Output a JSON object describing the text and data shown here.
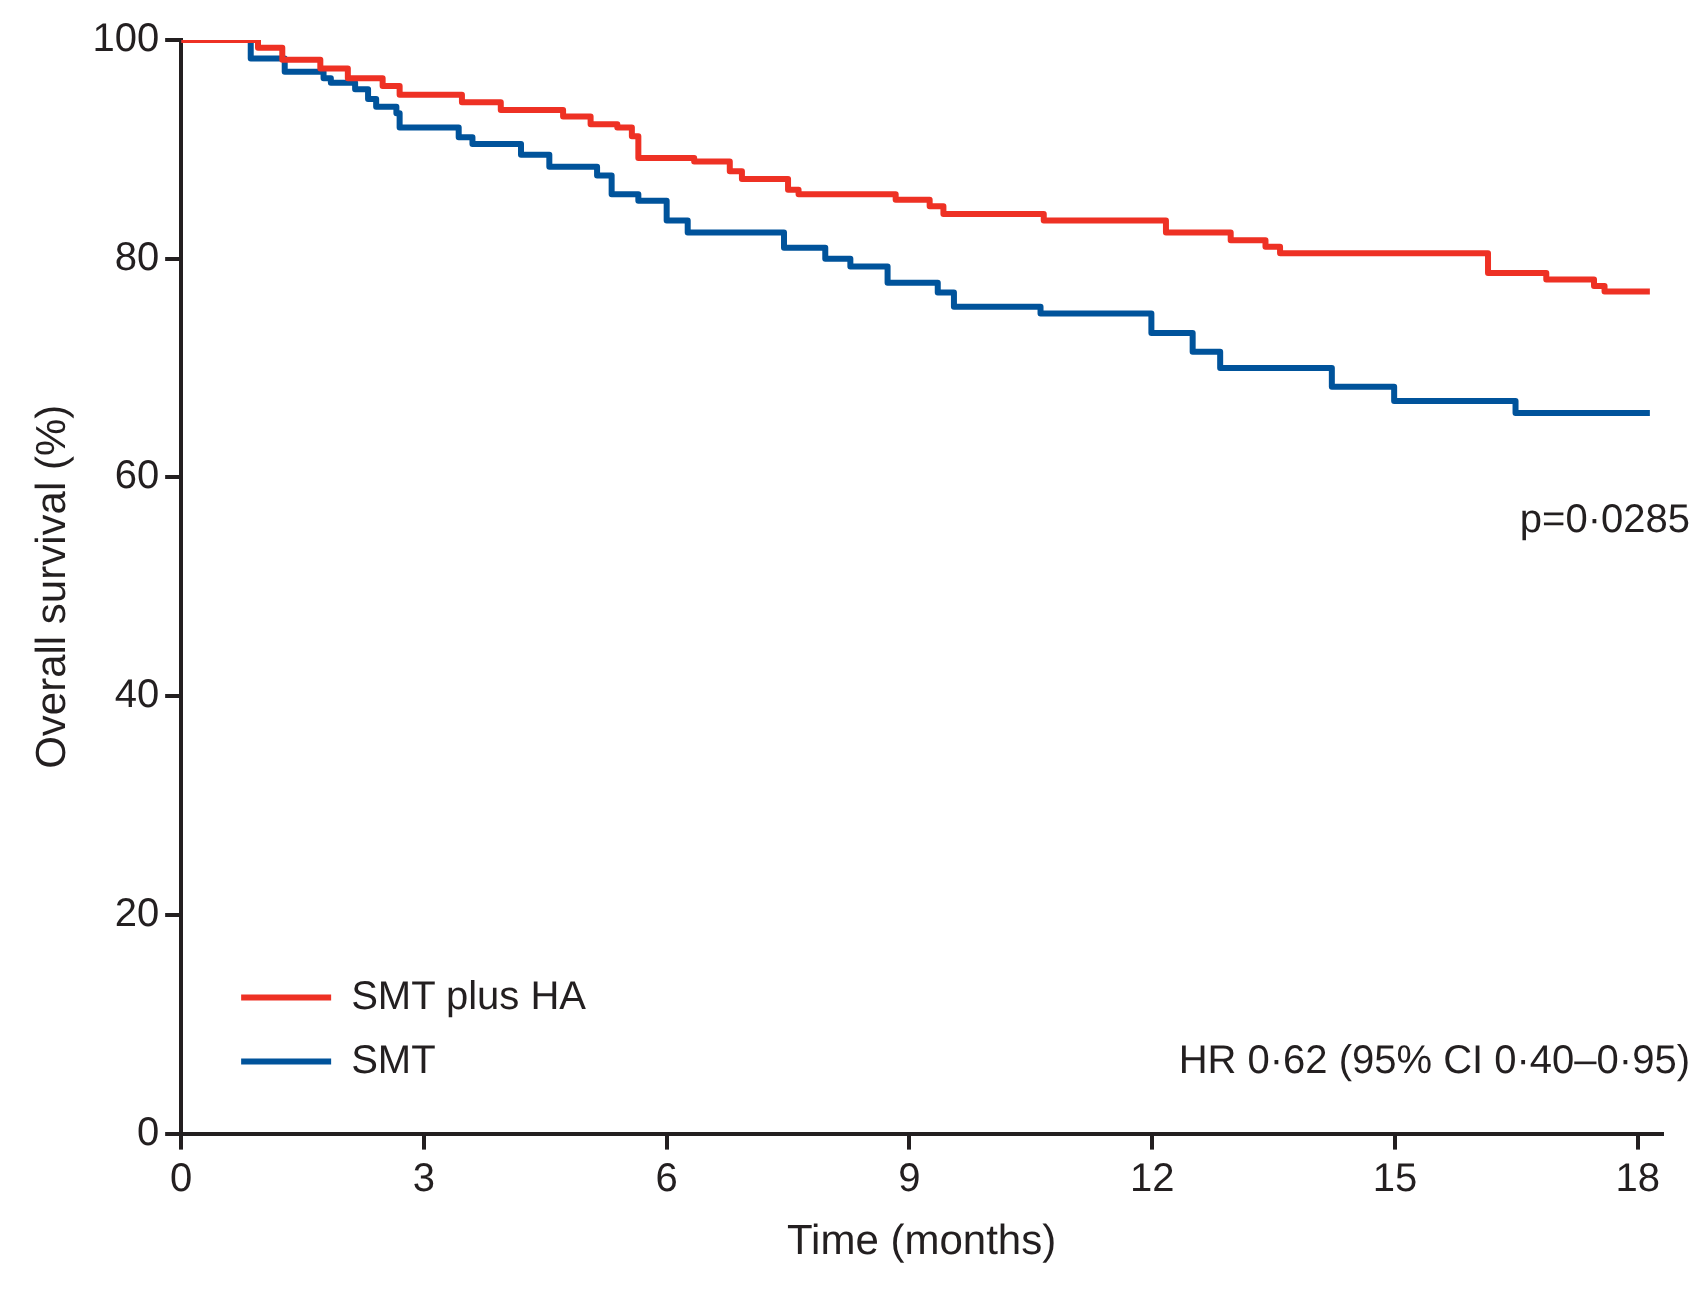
{
  "chart_data": {
    "type": "step",
    "xlabel": "Time (months)",
    "ylabel": "Overall survival (%)",
    "xlim": [
      0,
      18.3
    ],
    "xticks": [
      0,
      3,
      6,
      9,
      12,
      15,
      18
    ],
    "ylim": [
      0,
      100
    ],
    "yticks": [
      0,
      20,
      40,
      60,
      80,
      100
    ],
    "grid": false,
    "legend": "bottom left",
    "annotations": [
      "p=0·0285",
      "HR 0·62 (95% CI 0·40–0·95)"
    ],
    "series": [
      {
        "name": "SMT plus HA",
        "color": "#ee3124",
        "x": [
          0,
          0.95,
          1.25,
          1.72,
          2.06,
          2.49,
          2.7,
          3.47,
          3.95,
          4.72,
          5.06,
          5.39,
          5.57,
          5.65,
          6.34,
          6.78,
          6.93,
          7.5,
          7.63,
          8.83,
          9.25,
          9.42,
          10.66,
          12.17,
          12.97,
          13.4,
          13.58,
          16.15,
          16.87,
          17.46,
          17.59,
          18.15
        ],
        "values": [
          100,
          99.3,
          98.2,
          97.4,
          96.5,
          95.8,
          95,
          94.3,
          93.6,
          93,
          92.3,
          92,
          91.2,
          89.2,
          88.9,
          88,
          87.3,
          86.3,
          85.9,
          85.4,
          84.8,
          84.1,
          83.5,
          82.4,
          81.7,
          81.1,
          80.5,
          78.7,
          78.1,
          77.5,
          77,
          77
        ]
      },
      {
        "name": "SMT",
        "color": "#00539b",
        "x": [
          0,
          0.86,
          1.28,
          1.76,
          1.85,
          2.15,
          2.31,
          2.41,
          2.66,
          2.7,
          3.43,
          3.6,
          4.2,
          4.55,
          5.14,
          5.32,
          5.65,
          6,
          6.26,
          7.45,
          7.96,
          8.27,
          8.73,
          9.35,
          9.55,
          10.62,
          11.99,
          12.5,
          12.84,
          14.22,
          14.99,
          16.49,
          18.15
        ],
        "values": [
          100,
          98.3,
          97.1,
          96.5,
          96.1,
          95.5,
          94.6,
          93.9,
          93.3,
          92,
          91.1,
          90.5,
          89.5,
          88.4,
          87.6,
          85.9,
          85.3,
          83.5,
          82.4,
          81,
          80,
          79.3,
          77.8,
          76.9,
          75.6,
          75,
          73.2,
          71.5,
          70,
          68.3,
          67,
          65.9,
          65.9
        ]
      }
    ]
  }
}
